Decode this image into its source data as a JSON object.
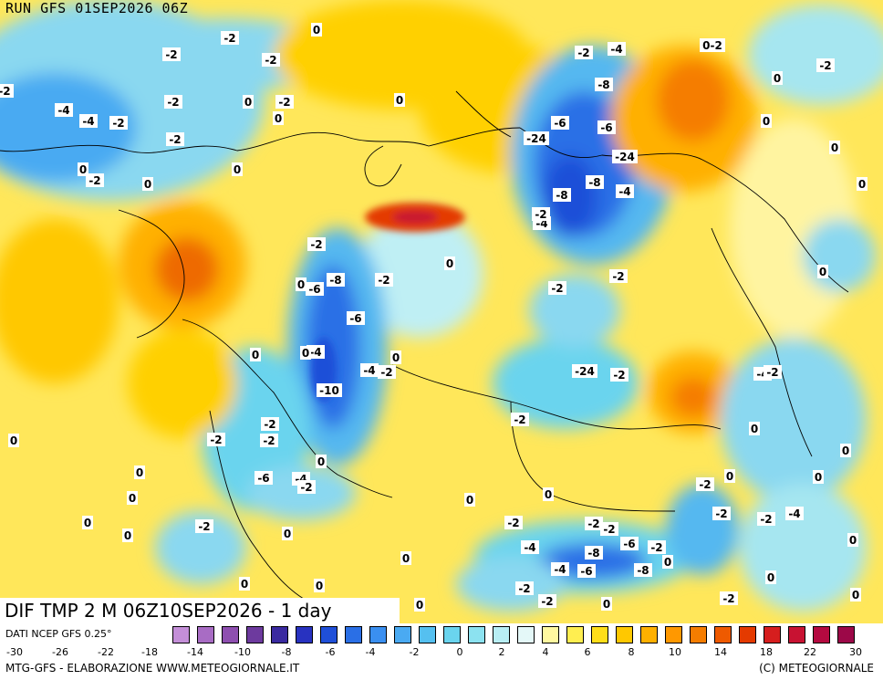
{
  "run_title": "RUN GFS 01SEP2026 06Z",
  "field_title": "DIF TMP 2 M 06Z10SEP2026 - 1 day",
  "data_source": "DATI NCEP GFS 0.25°",
  "footer": {
    "left": "MTG-GFS - ELABORAZIONE WWW.METEOGIORNALE.IT",
    "right": "(C) METEOGIORNALE"
  },
  "legend": {
    "colors": [
      "#c48fd8",
      "#a86cc4",
      "#8e4fb0",
      "#6d3a9e",
      "#3a2aa0",
      "#2832c0",
      "#1f4fd8",
      "#2a6fe6",
      "#3a8ff0",
      "#4aaaf2",
      "#55c0f0",
      "#6ad4ee",
      "#8ce2f0",
      "#b8eef4",
      "#e4f8f8",
      "#fff8a0",
      "#ffee50",
      "#ffde1a",
      "#ffc800",
      "#ffb000",
      "#ff9800",
      "#f57d00",
      "#ee5a00",
      "#e43a00",
      "#d61e1e",
      "#c81232",
      "#b40a40",
      "#9c0848"
    ],
    "ticks": [
      "-30",
      "-26",
      "-22",
      "-18",
      "-14",
      "-10",
      "-8",
      "-6",
      "-4",
      "-2",
      "0",
      "2",
      "4",
      "6",
      "8",
      "10",
      "14",
      "18",
      "22",
      "30"
    ]
  },
  "map_labels": [
    "-2",
    "0",
    "-2",
    "-2",
    "-2",
    "-4",
    "-4",
    "-2",
    "-2",
    "0",
    "-2",
    "-2",
    "0",
    "0",
    "-2",
    "0",
    "0",
    "0",
    "-2",
    "-4",
    "-8",
    "-6",
    "-6",
    "-24",
    "-24",
    "-8",
    "-8",
    "-4",
    "-4",
    "-2",
    "0-2",
    "-2",
    "0",
    "0",
    "0",
    "0",
    "0",
    "-2",
    "-8",
    "-6",
    "0",
    "-2",
    "0",
    "-6",
    "0",
    "-4",
    "0",
    "-10",
    "-4",
    "-2",
    "0",
    "-2",
    "-2",
    "-2",
    "-24",
    "-2",
    "-2",
    "-2",
    "-4",
    "-2",
    "0",
    "-6",
    "-4",
    "-2",
    "0",
    "-2",
    "0",
    "0",
    "0",
    "0",
    "0",
    "0",
    "0",
    "0",
    "0",
    "0",
    "-2",
    "-2",
    "-4",
    "-2",
    "-2",
    "-2",
    "-2",
    "-8",
    "-6",
    "-2",
    "-4",
    "-6",
    "-8",
    "0",
    "-2",
    "-2",
    "-2",
    "-4",
    "-2",
    "0",
    "0",
    "0",
    "0",
    "0",
    "0",
    "0",
    "0",
    "0"
  ]
}
